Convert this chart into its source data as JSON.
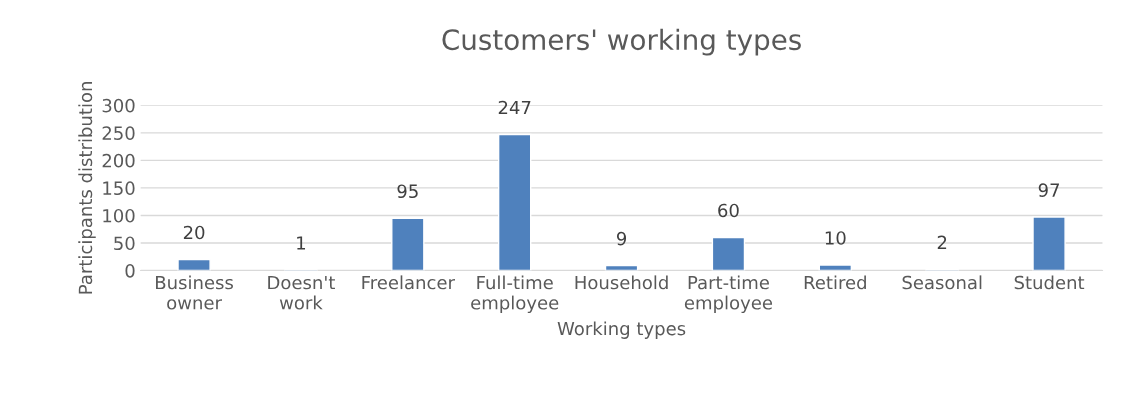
{
  "chart_data": {
    "type": "bar",
    "title": "Customers' working types",
    "xlabel": "Working types",
    "ylabel": "Participants distribution",
    "categories": [
      "Business owner",
      "Doesn't work",
      "Freelancer",
      "Full-time employee",
      "Household",
      "Part-time employee",
      "Retired",
      "Seasonal",
      "Student"
    ],
    "values": [
      20,
      1,
      95,
      247,
      9,
      60,
      10,
      2,
      97
    ],
    "color": "#4f81bd",
    "ylim": [
      0,
      300
    ],
    "yticks": [
      0,
      50,
      100,
      150,
      200,
      250,
      300
    ],
    "grid": "y",
    "data_labels": true
  }
}
